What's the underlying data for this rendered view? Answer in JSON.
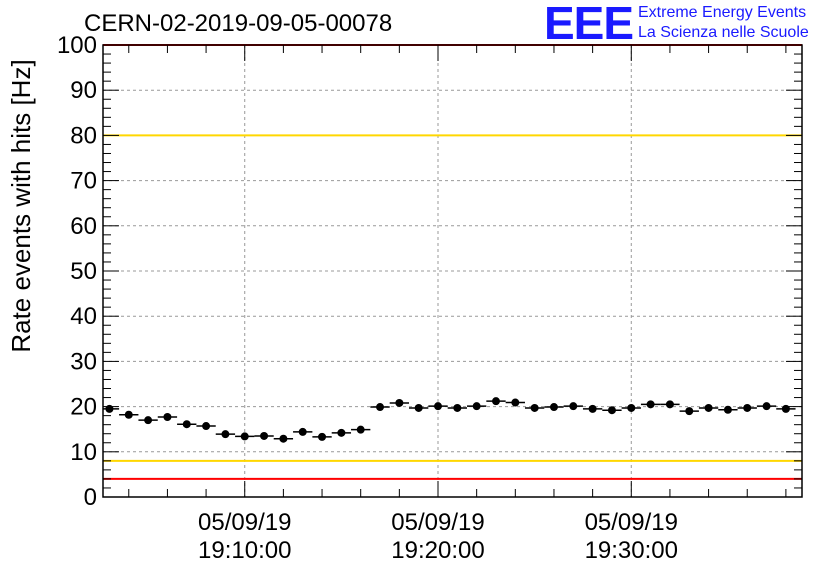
{
  "header": {
    "run_title": "CERN-02-2019-09-05-00078",
    "logo_text": "EEE",
    "logo_line1": "Extreme Energy Events",
    "logo_line2": "La Scienza nelle Scuole"
  },
  "colors": {
    "logo": "#1a1aff",
    "red_line": "#ff0000",
    "yellow_line": "#ffd700",
    "points": "#000000",
    "grid": "#999999"
  },
  "chart_data": {
    "type": "scatter",
    "title": "CERN-02-2019-09-05-00078",
    "xlabel": "",
    "ylabel": "Rate events with hits [Hz]",
    "ylim": [
      0,
      100
    ],
    "y_ticks": [
      0,
      10,
      20,
      30,
      40,
      50,
      60,
      70,
      80,
      90,
      100
    ],
    "x_ticks": [
      {
        "t": "19:10:00",
        "date": "05/09/19",
        "time": "19:10:00"
      },
      {
        "t": "19:20:00",
        "date": "05/09/19",
        "time": "19:20:00"
      },
      {
        "t": "19:30:00",
        "date": "05/09/19",
        "time": "19:30:00"
      }
    ],
    "xlim": [
      "19:02:40",
      "19:38:50"
    ],
    "grid": true,
    "bin_minutes": 1,
    "series": [
      {
        "values": [
          {
            "t": "19:03:00",
            "y": 19.5
          },
          {
            "t": "19:04:00",
            "y": 18.2
          },
          {
            "t": "19:05:00",
            "y": 17.0
          },
          {
            "t": "19:06:00",
            "y": 17.7
          },
          {
            "t": "19:07:00",
            "y": 16.1
          },
          {
            "t": "19:08:00",
            "y": 15.7
          },
          {
            "t": "19:09:00",
            "y": 13.9
          },
          {
            "t": "19:10:00",
            "y": 13.4
          },
          {
            "t": "19:11:00",
            "y": 13.5
          },
          {
            "t": "19:12:00",
            "y": 12.9
          },
          {
            "t": "19:13:00",
            "y": 14.4
          },
          {
            "t": "19:14:00",
            "y": 13.3
          },
          {
            "t": "19:15:00",
            "y": 14.2
          },
          {
            "t": "19:16:00",
            "y": 14.9
          },
          {
            "t": "19:17:00",
            "y": 19.9
          },
          {
            "t": "19:18:00",
            "y": 20.8
          },
          {
            "t": "19:19:00",
            "y": 19.7
          },
          {
            "t": "19:20:00",
            "y": 20.1
          },
          {
            "t": "19:21:00",
            "y": 19.7
          },
          {
            "t": "19:22:00",
            "y": 20.1
          },
          {
            "t": "19:23:00",
            "y": 21.2
          },
          {
            "t": "19:24:00",
            "y": 20.9
          },
          {
            "t": "19:25:00",
            "y": 19.7
          },
          {
            "t": "19:26:00",
            "y": 19.9
          },
          {
            "t": "19:27:00",
            "y": 20.1
          },
          {
            "t": "19:28:00",
            "y": 19.5
          },
          {
            "t": "19:29:00",
            "y": 19.2
          },
          {
            "t": "19:30:00",
            "y": 19.7
          },
          {
            "t": "19:31:00",
            "y": 20.5
          },
          {
            "t": "19:32:00",
            "y": 20.5
          },
          {
            "t": "19:33:00",
            "y": 19.0
          },
          {
            "t": "19:34:00",
            "y": 19.7
          },
          {
            "t": "19:35:00",
            "y": 19.3
          },
          {
            "t": "19:36:00",
            "y": 19.7
          },
          {
            "t": "19:37:00",
            "y": 20.1
          },
          {
            "t": "19:38:00",
            "y": 19.5
          }
        ]
      }
    ],
    "reference_lines": [
      {
        "y": 100,
        "color": "#ff0000"
      },
      {
        "y": 80,
        "color": "#ffd700"
      },
      {
        "y": 8,
        "color": "#ffd700"
      },
      {
        "y": 4,
        "color": "#ff0000"
      }
    ]
  }
}
